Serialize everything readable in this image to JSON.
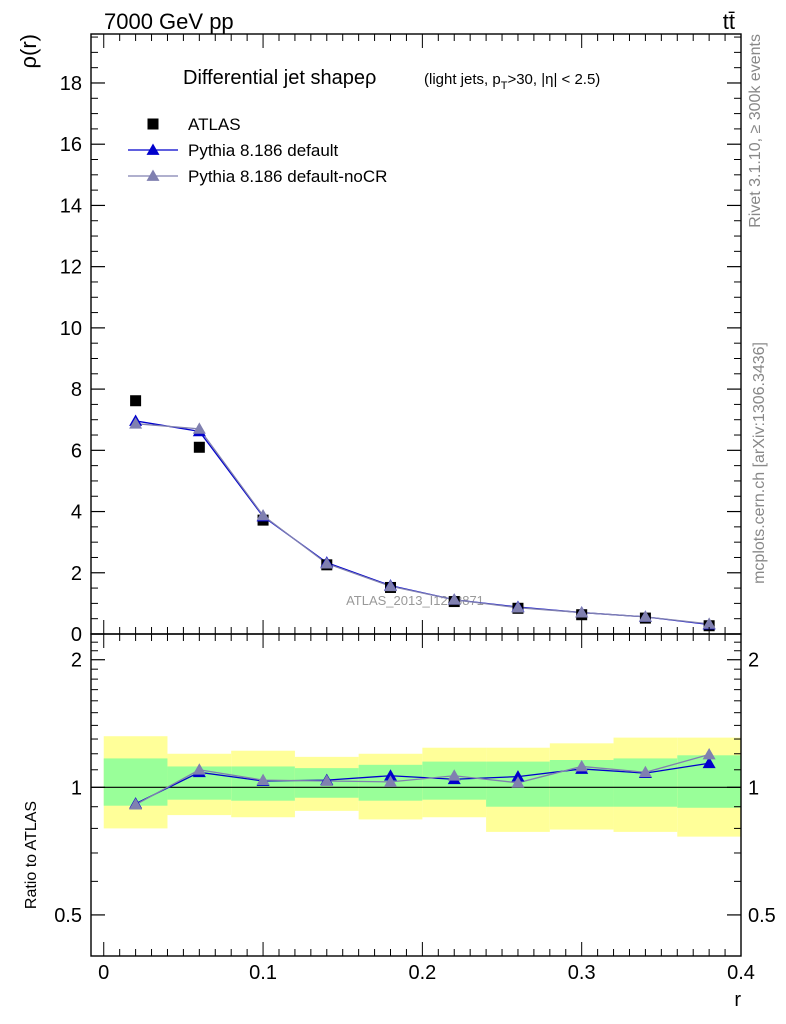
{
  "header": {
    "energy_label": "7000 GeV pp",
    "process_label": "tt̄"
  },
  "side_labels": {
    "rivet": "Rivet 3.1.10, ≥ 300k events",
    "mcplots": "mcplots.cern.ch [arXiv:1306.3436]"
  },
  "watermark": "ATLAS_2013_I1243871",
  "chart_data": [
    {
      "type": "scatter",
      "panel": "main",
      "title": "Differential jet shapeρ",
      "title_suffix_parts": [
        "(light jets, p",
        "T",
        ">30, |η| < 2.5)"
      ],
      "ylabel": "ρ(r)",
      "xlabel": "r",
      "xlim": [
        -0.008,
        0.4
      ],
      "ylim": [
        0,
        19.6
      ],
      "yticks": [
        0,
        2,
        4,
        6,
        8,
        10,
        12,
        14,
        16,
        18
      ],
      "ytick_labels": [
        "0",
        "2",
        "4",
        "6",
        "8",
        "10",
        "12",
        "14",
        "16",
        "18"
      ],
      "legend_position": "top-left",
      "series": [
        {
          "name": "ATLAS",
          "marker": "square",
          "color": "#000000",
          "x": [
            0.02,
            0.06,
            0.1,
            0.14,
            0.18,
            0.22,
            0.26,
            0.3,
            0.34,
            0.38
          ],
          "y": [
            7.62,
            6.1,
            3.72,
            2.26,
            1.52,
            1.06,
            0.84,
            0.63,
            0.52,
            0.27
          ]
        },
        {
          "name": "Pythia 8.186 default",
          "marker": "triangle",
          "color": "#0000cc",
          "x": [
            0.02,
            0.06,
            0.1,
            0.14,
            0.18,
            0.22,
            0.26,
            0.3,
            0.34,
            0.38
          ],
          "y": [
            6.96,
            6.62,
            3.84,
            2.33,
            1.58,
            1.12,
            0.88,
            0.7,
            0.56,
            0.31
          ]
        },
        {
          "name": "Pythia 8.186 default-noCR",
          "marker": "triangle",
          "color": "#8080b0",
          "x": [
            0.02,
            0.06,
            0.1,
            0.14,
            0.18,
            0.22,
            0.26,
            0.3,
            0.34,
            0.38
          ],
          "y": [
            6.87,
            6.7,
            3.87,
            2.3,
            1.56,
            1.12,
            0.86,
            0.7,
            0.56,
            0.33
          ]
        }
      ]
    },
    {
      "type": "line",
      "panel": "ratio",
      "ylabel": "Ratio to ATLAS",
      "xlabel": "r",
      "xlim": [
        -0.008,
        0.4
      ],
      "ylim": [
        0.4,
        2.3
      ],
      "log_y": true,
      "yticks": [
        0.5,
        1,
        2
      ],
      "ytick_labels": [
        "0.5",
        "1",
        "2"
      ],
      "xticks": [
        0,
        0.1,
        0.2,
        0.3,
        0.4
      ],
      "xtick_labels": [
        "0",
        "0.1",
        "0.2",
        "0.3",
        "0.4"
      ],
      "reference_line": 1,
      "bands": {
        "bin_edges": [
          0.0,
          0.04,
          0.08,
          0.12,
          0.16,
          0.2,
          0.24,
          0.28,
          0.32,
          0.36,
          0.4
        ],
        "stat": {
          "color": "#99ff99",
          "low": [
            0.905,
            0.935,
            0.93,
            0.945,
            0.93,
            0.935,
            0.9,
            0.9,
            0.9,
            0.895
          ],
          "high": [
            1.17,
            1.12,
            1.12,
            1.11,
            1.13,
            1.15,
            1.15,
            1.16,
            1.17,
            1.19
          ]
        },
        "total": {
          "color": "#ffff99",
          "low": [
            0.8,
            0.86,
            0.85,
            0.88,
            0.84,
            0.85,
            0.785,
            0.795,
            0.785,
            0.765
          ],
          "high": [
            1.32,
            1.2,
            1.22,
            1.18,
            1.2,
            1.24,
            1.24,
            1.27,
            1.31,
            1.31
          ]
        }
      },
      "series": [
        {
          "name": "Pythia 8.186 default",
          "color": "#0000cc",
          "x": [
            0.02,
            0.06,
            0.1,
            0.14,
            0.18,
            0.22,
            0.26,
            0.3,
            0.34,
            0.38
          ],
          "y": [
            0.915,
            1.085,
            1.035,
            1.04,
            1.065,
            1.045,
            1.06,
            1.105,
            1.08,
            1.14
          ]
        },
        {
          "name": "Pythia 8.186 default-noCR",
          "color": "#8080b0",
          "x": [
            0.02,
            0.06,
            0.1,
            0.14,
            0.18,
            0.22,
            0.26,
            0.3,
            0.34,
            0.38
          ],
          "y": [
            0.91,
            1.1,
            1.04,
            1.035,
            1.03,
            1.065,
            1.025,
            1.12,
            1.085,
            1.195
          ]
        }
      ]
    }
  ]
}
